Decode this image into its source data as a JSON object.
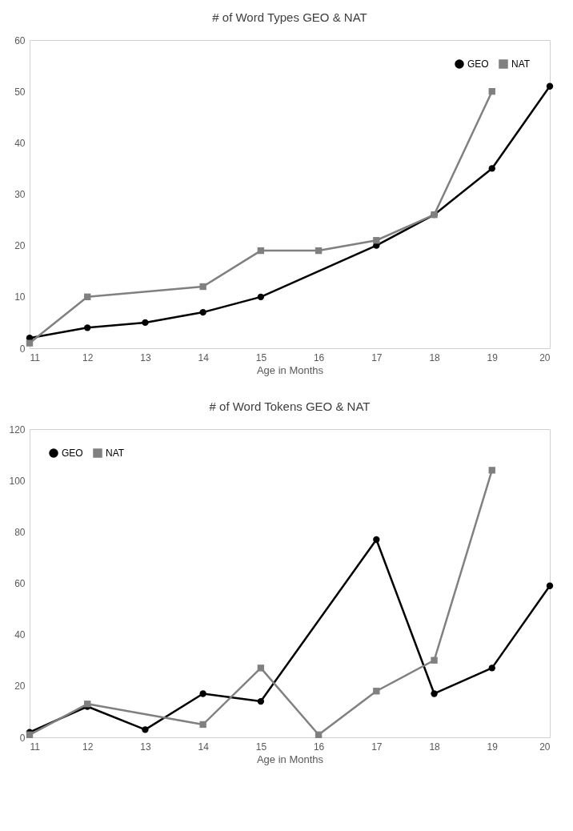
{
  "chart_data": [
    {
      "type": "line",
      "title": "# of Word Types GEO & NAT",
      "xlabel": "Age in Months",
      "xlim": [
        11,
        20
      ],
      "xticks": [
        11,
        12,
        13,
        14,
        15,
        16,
        17,
        18,
        19,
        20
      ],
      "ylim": [
        0,
        60
      ],
      "yticks": [
        0,
        10,
        20,
        30,
        40,
        50,
        60
      ],
      "grid": false,
      "legend": "top right",
      "series": [
        {
          "name": "GEO",
          "color": "#000000",
          "marker": "circle",
          "x": [
            11,
            12,
            13,
            14,
            15,
            17,
            18,
            19,
            20
          ],
          "values": [
            2,
            4,
            5,
            7,
            10,
            20,
            26,
            35,
            51
          ]
        },
        {
          "name": "NAT",
          "color": "#808080",
          "marker": "square",
          "x": [
            11,
            12,
            14,
            15,
            16,
            17,
            18,
            19
          ],
          "values": [
            1,
            10,
            12,
            19,
            19,
            21,
            26,
            50
          ]
        }
      ]
    },
    {
      "type": "line",
      "title": "# of Word Tokens GEO & NAT",
      "xlabel": "Age in Months",
      "xlim": [
        11,
        20
      ],
      "xticks": [
        11,
        12,
        13,
        14,
        15,
        16,
        17,
        18,
        19,
        20
      ],
      "ylim": [
        0,
        120
      ],
      "yticks": [
        0,
        20,
        40,
        60,
        80,
        100,
        120
      ],
      "grid": false,
      "legend": "top left",
      "series": [
        {
          "name": "GEO",
          "color": "#000000",
          "marker": "circle",
          "x": [
            11,
            12,
            13,
            14,
            15,
            17,
            18,
            19,
            20
          ],
          "values": [
            2,
            12,
            3,
            17,
            14,
            77,
            17,
            27,
            59
          ]
        },
        {
          "name": "NAT",
          "color": "#808080",
          "marker": "square",
          "x": [
            11,
            12,
            14,
            15,
            16,
            17,
            18,
            19
          ],
          "values": [
            1,
            13,
            5,
            27,
            1,
            18,
            30,
            104
          ]
        }
      ]
    }
  ]
}
